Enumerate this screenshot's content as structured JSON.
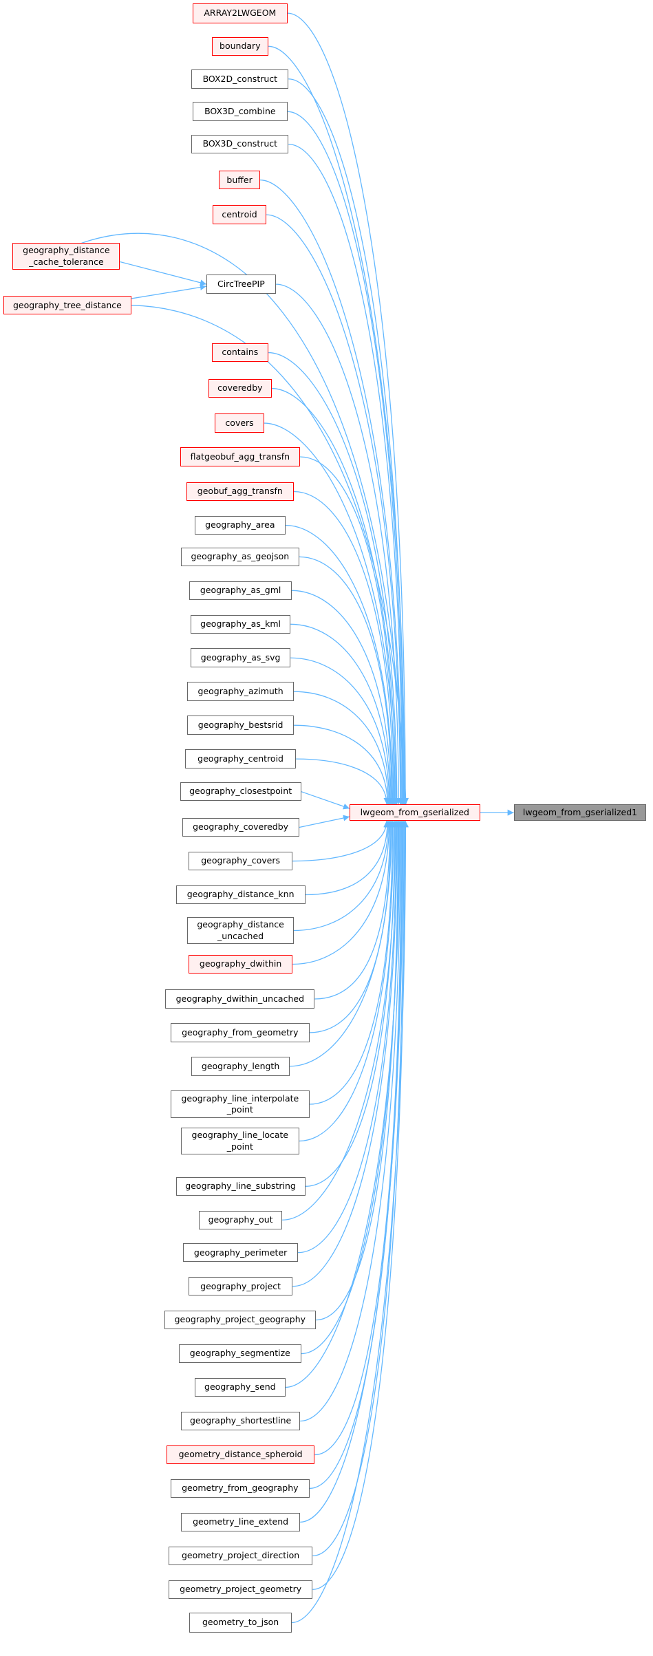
{
  "colors": {
    "edge": "#63b8ff",
    "truncated_border": "#ff0000",
    "truncated_fill": "#fff0f0",
    "normal_border": "#666666",
    "target_fill": "#999999"
  },
  "target": {
    "label": "lwgeom_from_gserialized1"
  },
  "hub": {
    "label": "lwgeom_from_gserialized",
    "truncated": true
  },
  "callers": [
    {
      "label": "ARRAY2LWGEOM",
      "truncated": true
    },
    {
      "label": "boundary",
      "truncated": true
    },
    {
      "label": "BOX2D_construct",
      "truncated": false
    },
    {
      "label": "BOX3D_combine",
      "truncated": false
    },
    {
      "label": "BOX3D_construct",
      "truncated": false
    },
    {
      "label": "buffer",
      "truncated": true
    },
    {
      "label": "centroid",
      "truncated": true
    },
    {
      "label": "geography_distance\n_cache_tolerance",
      "truncated": true
    },
    {
      "label": "CircTreePIP",
      "truncated": false
    },
    {
      "label": "geography_tree_distance",
      "truncated": true
    },
    {
      "label": "contains",
      "truncated": true
    },
    {
      "label": "coveredby",
      "truncated": true
    },
    {
      "label": "covers",
      "truncated": true
    },
    {
      "label": "flatgeobuf_agg_transfn",
      "truncated": true
    },
    {
      "label": "geobuf_agg_transfn",
      "truncated": true
    },
    {
      "label": "geography_area",
      "truncated": false
    },
    {
      "label": "geography_as_geojson",
      "truncated": false
    },
    {
      "label": "geography_as_gml",
      "truncated": false
    },
    {
      "label": "geography_as_kml",
      "truncated": false
    },
    {
      "label": "geography_as_svg",
      "truncated": false
    },
    {
      "label": "geography_azimuth",
      "truncated": false
    },
    {
      "label": "geography_bestsrid",
      "truncated": false
    },
    {
      "label": "geography_centroid",
      "truncated": false
    },
    {
      "label": "geography_closestpoint",
      "truncated": false
    },
    {
      "label": "geography_coveredby",
      "truncated": false
    },
    {
      "label": "geography_covers",
      "truncated": false
    },
    {
      "label": "geography_distance_knn",
      "truncated": false
    },
    {
      "label": "geography_distance\n_uncached",
      "truncated": false
    },
    {
      "label": "geography_dwithin",
      "truncated": true
    },
    {
      "label": "geography_dwithin_uncached",
      "truncated": false
    },
    {
      "label": "geography_from_geometry",
      "truncated": false
    },
    {
      "label": "geography_length",
      "truncated": false
    },
    {
      "label": "geography_line_interpolate\n_point",
      "truncated": false
    },
    {
      "label": "geography_line_locate\n_point",
      "truncated": false
    },
    {
      "label": "geography_line_substring",
      "truncated": false
    },
    {
      "label": "geography_out",
      "truncated": false
    },
    {
      "label": "geography_perimeter",
      "truncated": false
    },
    {
      "label": "geography_project",
      "truncated": false
    },
    {
      "label": "geography_project_geography",
      "truncated": false
    },
    {
      "label": "geography_segmentize",
      "truncated": false
    },
    {
      "label": "geography_send",
      "truncated": false
    },
    {
      "label": "geography_shortestline",
      "truncated": false
    },
    {
      "label": "geometry_distance_spheroid",
      "truncated": true
    },
    {
      "label": "geometry_from_geography",
      "truncated": false
    },
    {
      "label": "geometry_line_extend",
      "truncated": false
    },
    {
      "label": "geometry_project_direction",
      "truncated": false
    },
    {
      "label": "geometry_project_geometry",
      "truncated": false
    },
    {
      "label": "geometry_to_json",
      "truncated": false
    }
  ],
  "edges_into_CircTreePIP": [
    "geography_distance\n_cache_tolerance",
    "geography_tree_distance"
  ]
}
